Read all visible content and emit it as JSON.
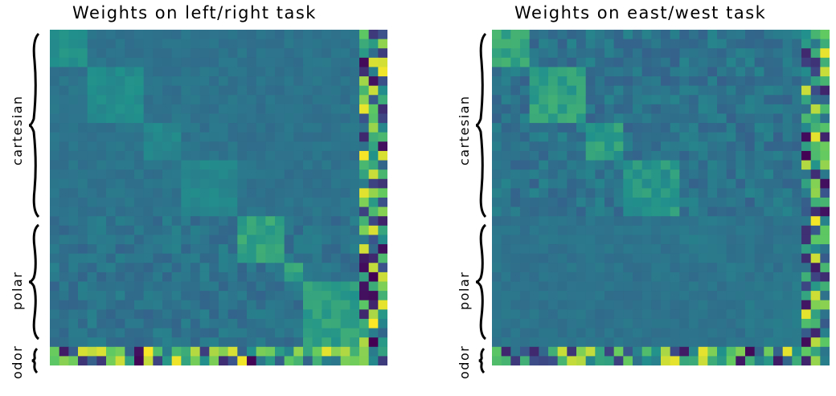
{
  "chart_data": [
    {
      "type": "heatmap",
      "title": "Weights on left/right task",
      "row_groups": [
        {
          "label": "cartesian"
        },
        {
          "label": "polar"
        },
        {
          "label": "odor"
        }
      ],
      "colormap": [
        "#440154",
        "#3b528b",
        "#21918c",
        "#5ec962",
        "#fde725"
      ],
      "size": 36,
      "blocks": [
        {
          "start": 0,
          "len": 4,
          "value": 0.5
        },
        {
          "start": 4,
          "len": 6,
          "value": 0.48
        },
        {
          "start": 10,
          "len": 4,
          "value": 0.46
        },
        {
          "start": 14,
          "len": 6,
          "value": 0.46
        },
        {
          "start": 20,
          "len": 5,
          "value": 0.58
        },
        {
          "start": 25,
          "len": 2,
          "value": 0.58
        },
        {
          "start": 27,
          "len": 7,
          "value": 0.56
        }
      ],
      "background": 0.38
    },
    {
      "type": "heatmap",
      "title": "Weights on east/west task",
      "row_groups": [
        {
          "label": "cartesian"
        },
        {
          "label": "polar"
        },
        {
          "label": "odor"
        }
      ],
      "colormap": [
        "#440154",
        "#3b528b",
        "#21918c",
        "#5ec962",
        "#fde725"
      ],
      "size": 36,
      "blocks": [
        {
          "start": 0,
          "len": 4,
          "value": 0.6
        },
        {
          "start": 4,
          "len": 6,
          "value": 0.57
        },
        {
          "start": 10,
          "len": 4,
          "value": 0.55
        },
        {
          "start": 14,
          "len": 6,
          "value": 0.53
        },
        {
          "start": 20,
          "len": 5,
          "value": 0.4
        },
        {
          "start": 25,
          "len": 2,
          "value": 0.4
        },
        {
          "start": 27,
          "len": 7,
          "value": 0.4
        }
      ],
      "background": 0.38
    }
  ]
}
